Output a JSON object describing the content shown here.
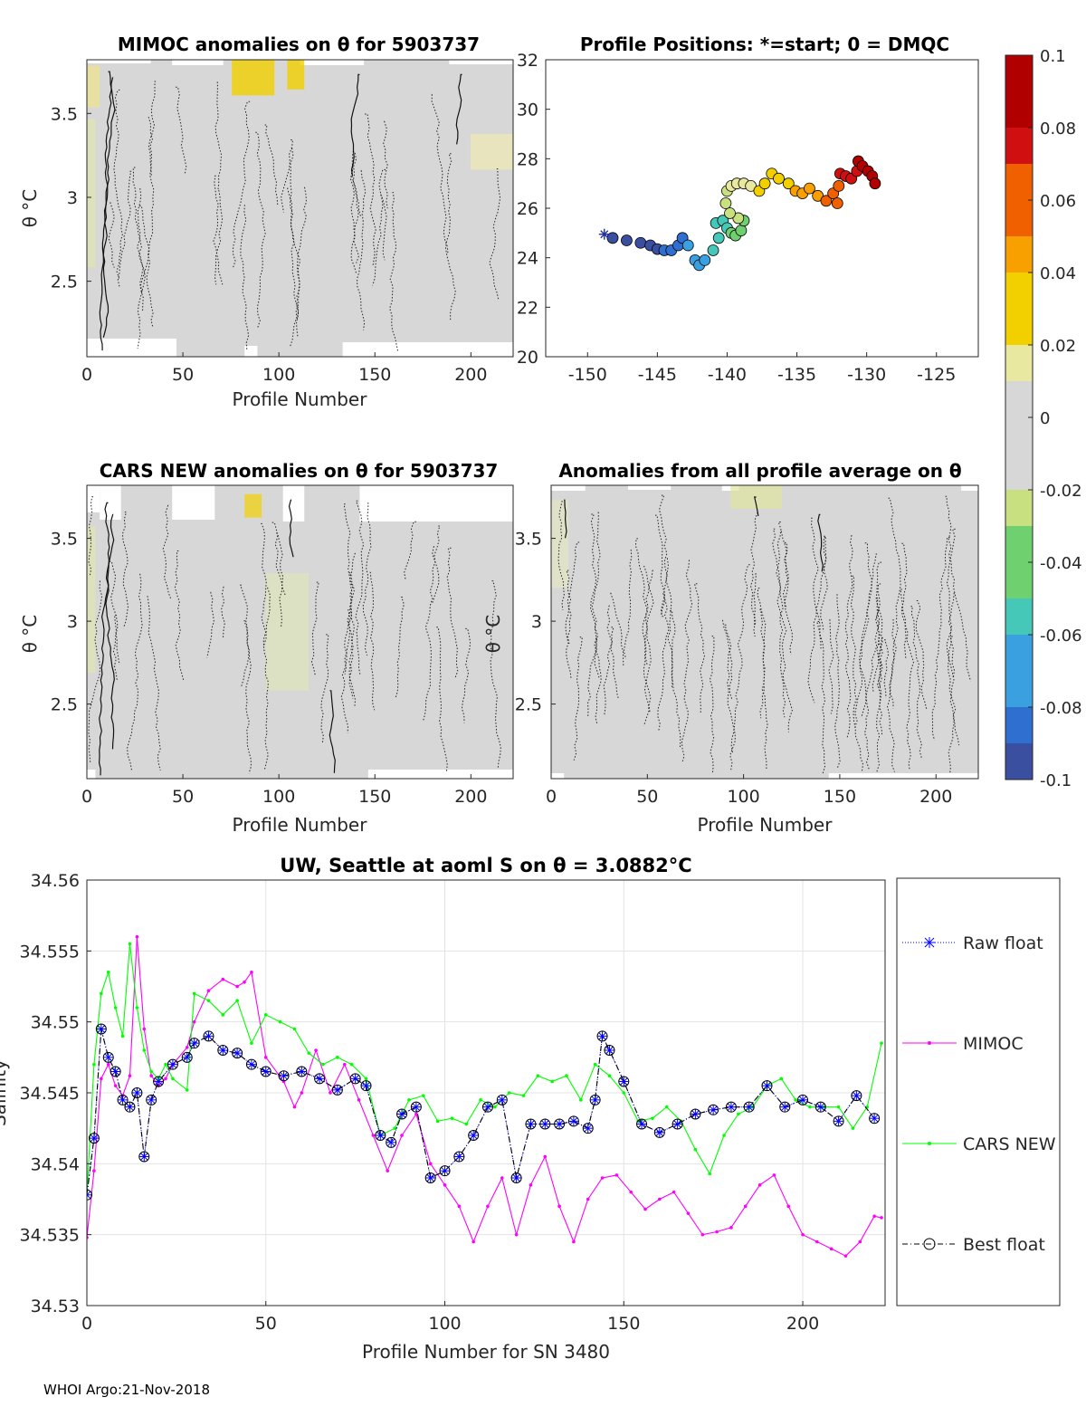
{
  "footer": "WHOI Argo:21-Nov-2018",
  "panels": {
    "mimoc": {
      "title": "MIMOC anomalies on θ  for 5903737",
      "xlabel": "Profile Number",
      "ylabel": "θ °C",
      "xticks": [
        "0",
        "50",
        "100",
        "150",
        "200"
      ],
      "yticks": [
        "2.5",
        "3",
        "3.5"
      ]
    },
    "positions": {
      "title": "Profile Positions: *=start; 0 = DMQC",
      "xticks": [
        "-150",
        "-145",
        "-140",
        "-135",
        "-130",
        "-125"
      ],
      "yticks": [
        "20",
        "22",
        "24",
        "26",
        "28",
        "30",
        "32"
      ]
    },
    "cars": {
      "title": "CARS NEW anomalies on θ for 5903737",
      "xlabel": "Profile Number",
      "ylabel": "θ °C",
      "xticks": [
        "0",
        "50",
        "100",
        "150",
        "200"
      ],
      "yticks": [
        "2.5",
        "3",
        "3.5"
      ]
    },
    "avg": {
      "title": "Anomalies from all profile average on θ",
      "xlabel": "Profile Number",
      "ylabel": "θ °C",
      "xticks": [
        "0",
        "50",
        "100",
        "150",
        "200"
      ],
      "yticks": [
        "2.5",
        "3",
        "3.5"
      ]
    }
  },
  "colorbar": {
    "ticks": [
      "0.1",
      "0.08",
      "0.06",
      "0.04",
      "0.02",
      "0",
      "-0.02",
      "-0.04",
      "-0.06",
      "-0.08",
      "-0.1"
    ],
    "colors": [
      "#3b4fa0",
      "#2f6fd0",
      "#3aa0e0",
      "#45c8b8",
      "#6fd070",
      "#c8e080",
      "#e8e8a0",
      "#f2d000",
      "#f7a000",
      "#f06000",
      "#d01010",
      "#b00000"
    ]
  },
  "chart_data": [
    {
      "type": "heatmap",
      "id": "mimoc",
      "title": "MIMOC anomalies on θ  for 5903737",
      "xlabel": "Profile Number",
      "ylabel": "θ °C",
      "xlim": [
        0,
        222
      ],
      "ylim": [
        2.05,
        3.82
      ],
      "clim": [
        -0.1,
        0.1
      ]
    },
    {
      "type": "scatter",
      "id": "positions",
      "title": "Profile Positions: *=start; 0 = DMQC",
      "xlabel": "",
      "ylabel": "",
      "xlim": [
        -153,
        -122
      ],
      "ylim": [
        20,
        32
      ],
      "start": [
        -148.8,
        24.95
      ],
      "track": [
        [
          -148.2,
          24.8
        ],
        [
          -147.2,
          24.7
        ],
        [
          -146.2,
          24.6
        ],
        [
          -145.5,
          24.5
        ],
        [
          -145,
          24.35
        ],
        [
          -144.5,
          24.3
        ],
        [
          -144,
          24.3
        ],
        [
          -143.5,
          24.5
        ],
        [
          -143.2,
          24.8
        ],
        [
          -142.8,
          24.5
        ],
        [
          -142.3,
          23.9
        ],
        [
          -142,
          23.7
        ],
        [
          -141.6,
          23.9
        ],
        [
          -141,
          24.3
        ],
        [
          -140.6,
          24.8
        ],
        [
          -140.8,
          25.4
        ],
        [
          -140.3,
          25.5
        ],
        [
          -140,
          25.2
        ],
        [
          -139.7,
          25
        ],
        [
          -139.4,
          24.9
        ],
        [
          -139,
          25.1
        ],
        [
          -138.8,
          25.5
        ],
        [
          -139.2,
          25.6
        ],
        [
          -139.8,
          25.8
        ],
        [
          -140.1,
          26.2
        ],
        [
          -140,
          26.7
        ],
        [
          -139.7,
          26.9
        ],
        [
          -139.3,
          27
        ],
        [
          -138.8,
          27
        ],
        [
          -138.3,
          26.9
        ],
        [
          -137.7,
          26.7
        ],
        [
          -137.3,
          27
        ],
        [
          -136.8,
          27.4
        ],
        [
          -136.3,
          27.2
        ],
        [
          -135.6,
          27
        ],
        [
          -135.1,
          26.7
        ],
        [
          -134.6,
          26.6
        ],
        [
          -134.1,
          26.8
        ],
        [
          -133.5,
          26.5
        ],
        [
          -132.9,
          26.3
        ],
        [
          -132.4,
          26.6
        ],
        [
          -132.1,
          26.2
        ],
        [
          -132,
          26.9
        ],
        [
          -131.9,
          27.4
        ],
        [
          -131.5,
          27.3
        ],
        [
          -131.1,
          27.2
        ],
        [
          -130.7,
          27.5
        ],
        [
          -130.6,
          27.9
        ],
        [
          -130.3,
          27.7
        ],
        [
          -129.9,
          27.5
        ],
        [
          -129.6,
          27.3
        ],
        [
          -129.4,
          27.0
        ]
      ]
    },
    {
      "type": "heatmap",
      "id": "cars",
      "title": "CARS NEW anomalies on θ for 5903737",
      "xlabel": "Profile Number",
      "ylabel": "θ °C",
      "xlim": [
        0,
        222
      ],
      "ylim": [
        2.05,
        3.82
      ],
      "clim": [
        -0.1,
        0.1
      ]
    },
    {
      "type": "heatmap",
      "id": "avg",
      "title": "Anomalies from all profile average on θ",
      "xlabel": "Profile Number",
      "ylabel": "θ °C",
      "xlim": [
        0,
        222
      ],
      "ylim": [
        2.05,
        3.82
      ],
      "clim": [
        -0.1,
        0.1
      ]
    },
    {
      "type": "line",
      "id": "salinity",
      "title": "UW, Seattle at aoml S on θ = 3.0882°C",
      "xlabel": "Profile Number for SN 3480",
      "ylabel": "Salinity",
      "xlim": [
        0,
        223
      ],
      "ylim": [
        34.53,
        34.56
      ],
      "xticks": [
        "0",
        "50",
        "100",
        "150",
        "200"
      ],
      "yticks": [
        "34.53",
        "34.535",
        "34.54",
        "34.545",
        "34.55",
        "34.555",
        "34.56"
      ],
      "legend": [
        "Raw float",
        "MIMOC",
        "CARS NEW",
        "Best float"
      ],
      "series": [
        {
          "name": "Raw float",
          "color": "#0000ff",
          "x": [
            0,
            2,
            4,
            6,
            8,
            10,
            12,
            14,
            16,
            18,
            20,
            24,
            28,
            30,
            34,
            38,
            42,
            46,
            50,
            55,
            60,
            65,
            70,
            75,
            78,
            82,
            85,
            88,
            92,
            96,
            100,
            104,
            108,
            112,
            116,
            120,
            124,
            128,
            132,
            136,
            140,
            142,
            144,
            146,
            150,
            155,
            160,
            165,
            170,
            175,
            180,
            185,
            190,
            195,
            200,
            205,
            210,
            215,
            220
          ],
          "values": [
            34.5378,
            34.5418,
            34.5495,
            34.5475,
            34.5465,
            34.5445,
            34.544,
            34.545,
            34.5405,
            34.5445,
            34.5458,
            34.547,
            34.5475,
            34.5485,
            34.549,
            34.548,
            34.5478,
            34.547,
            34.5465,
            34.5462,
            34.5465,
            34.546,
            34.5452,
            34.546,
            34.5455,
            34.542,
            34.5415,
            34.5435,
            34.544,
            34.539,
            34.5395,
            34.5405,
            34.542,
            34.544,
            34.5445,
            34.539,
            34.5428,
            34.5428,
            34.5428,
            34.543,
            34.5425,
            34.5445,
            34.549,
            34.548,
            34.5458,
            34.5428,
            34.5422,
            34.5428,
            34.5435,
            34.5438,
            34.544,
            34.544,
            34.5455,
            34.544,
            34.5445,
            34.544,
            34.543,
            34.5448,
            34.5432
          ]
        },
        {
          "name": "MIMOC",
          "color": "#ff00ff",
          "x": [
            0,
            2,
            4,
            6,
            8,
            10,
            12,
            14,
            16,
            18,
            20,
            22,
            24,
            28,
            30,
            34,
            38,
            42,
            44,
            46,
            50,
            55,
            58,
            60,
            64,
            68,
            72,
            76,
            80,
            84,
            88,
            92,
            96,
            100,
            104,
            108,
            112,
            116,
            120,
            124,
            128,
            132,
            136,
            140,
            144,
            148,
            152,
            156,
            160,
            164,
            168,
            172,
            176,
            180,
            184,
            188,
            192,
            196,
            200,
            204,
            208,
            212,
            216,
            220,
            222
          ],
          "values": [
            34.5348,
            34.5395,
            34.546,
            34.547,
            34.5455,
            34.5448,
            34.5462,
            34.556,
            34.5495,
            34.5462,
            34.5455,
            34.546,
            34.547,
            34.5482,
            34.55,
            34.5522,
            34.553,
            34.5525,
            34.5528,
            34.5535,
            34.5475,
            34.5458,
            34.544,
            34.545,
            34.548,
            34.545,
            34.547,
            34.5445,
            34.542,
            34.5395,
            34.542,
            34.5435,
            34.54,
            34.5385,
            34.537,
            34.5345,
            34.537,
            34.539,
            34.535,
            34.5385,
            34.5405,
            34.537,
            34.5345,
            34.5375,
            34.539,
            34.5392,
            34.538,
            34.5368,
            34.5375,
            34.538,
            34.5365,
            34.535,
            34.5352,
            34.5355,
            34.537,
            34.5385,
            34.5392,
            34.537,
            34.535,
            34.5345,
            34.534,
            34.5335,
            34.5345,
            34.5363,
            34.5362
          ]
        },
        {
          "name": "CARS NEW",
          "color": "#00ff00",
          "x": [
            0,
            2,
            4,
            6,
            8,
            10,
            12,
            14,
            16,
            18,
            20,
            22,
            24,
            28,
            30,
            34,
            38,
            42,
            46,
            50,
            54,
            58,
            62,
            66,
            70,
            74,
            78,
            82,
            86,
            90,
            94,
            98,
            102,
            106,
            110,
            114,
            118,
            122,
            126,
            130,
            134,
            138,
            142,
            146,
            150,
            154,
            158,
            162,
            166,
            170,
            174,
            178,
            182,
            186,
            190,
            194,
            198,
            202,
            206,
            210,
            214,
            218,
            222
          ],
          "values": [
            34.5378,
            34.547,
            34.552,
            34.5535,
            34.551,
            34.549,
            34.5555,
            34.551,
            34.548,
            34.5465,
            34.546,
            34.547,
            34.546,
            34.5452,
            34.552,
            34.5515,
            34.5505,
            34.5515,
            34.5485,
            34.5505,
            34.55,
            34.5495,
            34.5478,
            34.547,
            34.5475,
            34.547,
            34.546,
            34.542,
            34.5425,
            34.5445,
            34.5448,
            34.543,
            34.5432,
            34.5428,
            34.5445,
            34.544,
            34.545,
            34.5448,
            34.5462,
            34.5458,
            34.5462,
            34.5445,
            34.547,
            34.5462,
            34.545,
            34.543,
            34.5432,
            34.544,
            34.543,
            34.541,
            34.5393,
            34.542,
            34.5435,
            34.544,
            34.5455,
            34.546,
            34.5445,
            34.544,
            34.544,
            34.544,
            34.5425,
            34.544,
            34.5485
          ]
        },
        {
          "name": "Best float",
          "color": "#000000",
          "x": [
            0,
            2,
            4,
            6,
            8,
            10,
            12,
            14,
            16,
            18,
            20,
            24,
            28,
            30,
            34,
            38,
            42,
            46,
            50,
            55,
            60,
            65,
            70,
            75,
            78,
            82,
            85,
            88,
            92,
            96,
            100,
            104,
            108,
            112,
            116,
            120,
            124,
            128,
            132,
            136,
            140,
            142,
            144,
            146,
            150,
            155,
            160,
            165,
            170,
            175,
            180,
            185,
            190,
            195,
            200,
            205,
            210,
            215,
            220
          ],
          "values": [
            34.5378,
            34.5418,
            34.5495,
            34.5475,
            34.5465,
            34.5445,
            34.544,
            34.545,
            34.5405,
            34.5445,
            34.5458,
            34.547,
            34.5475,
            34.5485,
            34.549,
            34.548,
            34.5478,
            34.547,
            34.5465,
            34.5462,
            34.5465,
            34.546,
            34.5452,
            34.546,
            34.5455,
            34.542,
            34.5415,
            34.5435,
            34.544,
            34.539,
            34.5395,
            34.5405,
            34.542,
            34.544,
            34.5445,
            34.539,
            34.5428,
            34.5428,
            34.5428,
            34.543,
            34.5425,
            34.5445,
            34.549,
            34.548,
            34.5458,
            34.5428,
            34.5422,
            34.5428,
            34.5435,
            34.5438,
            34.544,
            34.544,
            34.5455,
            34.544,
            34.5445,
            34.544,
            34.543,
            34.5448,
            34.5432
          ]
        }
      ]
    }
  ]
}
